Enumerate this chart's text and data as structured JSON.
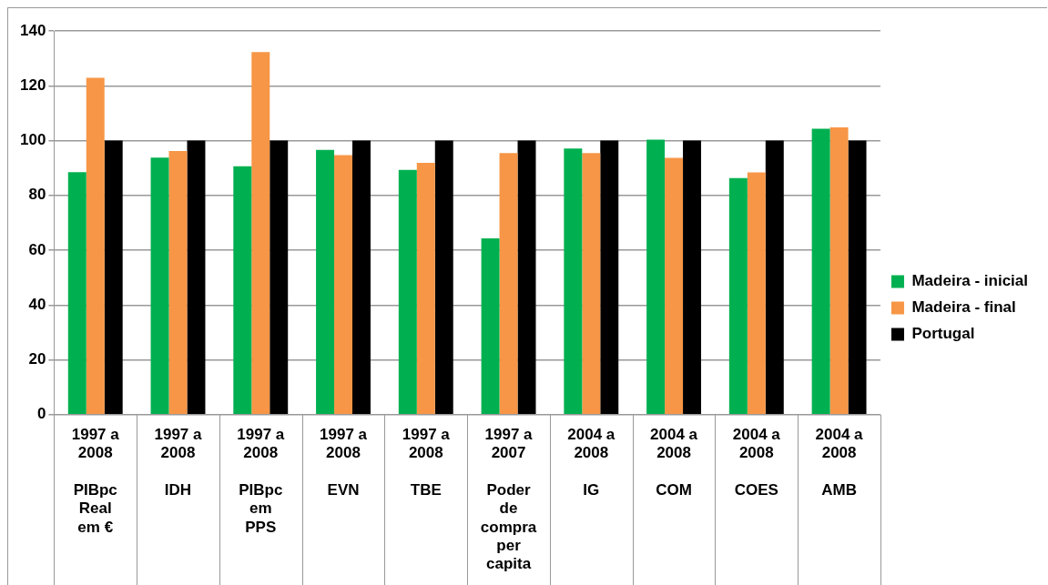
{
  "chart_data": {
    "type": "bar",
    "categories": [
      "1997 a\n2008\n\nPIBpc\nReal\nem €",
      "1997 a\n2008\n\nIDH",
      "1997 a\n2008\n\nPIBpc\nem\nPPS",
      "1997 a\n2008\n\nEVN",
      "1997 a\n2008\n\nTBE",
      "1997 a\n2007\n\nPoder\nde\ncompra\nper\ncapita",
      "2004 a\n2008\n\nIG",
      "2004 a\n2008\n\nCOM",
      "2004 a\n2008\n\nCOES",
      "2004 a\n2008\n\nAMB"
    ],
    "series": [
      {
        "name": "Madeira - inicial",
        "color": "#00b050",
        "values": [
          88.5,
          93.8,
          90.6,
          96.6,
          89.3,
          64.3,
          97.1,
          100.3,
          86.3,
          104.3
        ]
      },
      {
        "name": "Madeira - final",
        "color": "#f79646",
        "values": [
          122.9,
          96.2,
          132.3,
          94.7,
          91.9,
          95.4,
          95.4,
          93.7,
          88.4,
          104.8
        ]
      },
      {
        "name": "Portugal",
        "color": "#000000",
        "values": [
          100,
          100,
          100,
          100,
          100,
          100,
          100,
          100,
          100,
          100
        ]
      }
    ],
    "ylim": [
      0,
      140
    ],
    "yticks": [
      0,
      20,
      40,
      60,
      80,
      100,
      120,
      140
    ],
    "grid": "y",
    "legend": "right"
  }
}
